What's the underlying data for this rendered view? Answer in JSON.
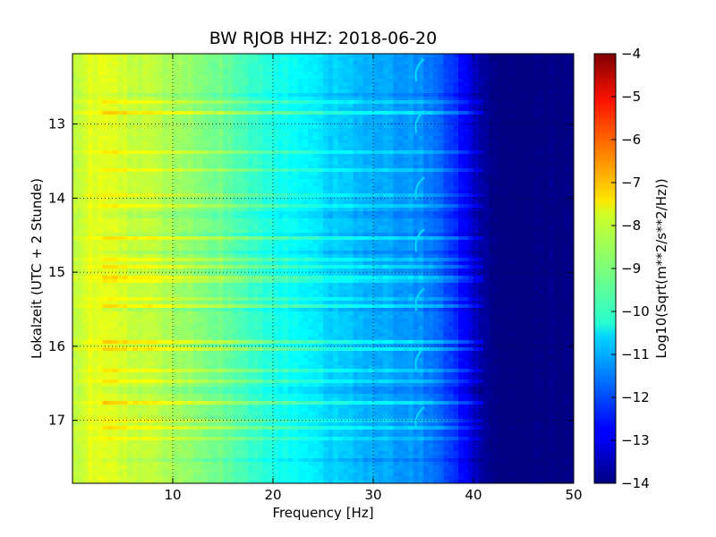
{
  "chart_data": {
    "type": "heatmap",
    "title": "BW RJOB HHZ: 2018-06-20",
    "xlabel": "Frequency [Hz]",
    "ylabel": "Lokalzeit (UTC + 2 Stunde)",
    "xlim": [
      0,
      50
    ],
    "ylim": [
      17.85,
      12.05
    ],
    "y_inverted": true,
    "grid": true,
    "x_ticks": [
      10,
      20,
      30,
      40,
      50
    ],
    "x_tick_labels": [
      "10",
      "20",
      "30",
      "40",
      "50"
    ],
    "y_ticks": [
      13,
      14,
      15,
      16,
      17
    ],
    "y_tick_labels": [
      "13",
      "14",
      "15",
      "16",
      "17"
    ],
    "colormap": "jet",
    "colorbar": {
      "label": "Log10(Sqrt(m**2/s**2/Hz))",
      "range": [
        -14,
        -4
      ],
      "ticks": [
        -4,
        -5,
        -6,
        -7,
        -8,
        -9,
        -10,
        -11,
        -12,
        -13,
        -14
      ],
      "tick_labels": [
        "−4",
        "−5",
        "−6",
        "−7",
        "−8",
        "−9",
        "−10",
        "−11",
        "−12",
        "−13",
        "−14"
      ],
      "placement": "right"
    },
    "spectral_profile": {
      "frequency_hz": [
        0,
        2,
        5,
        10,
        15,
        20,
        25,
        30,
        35,
        38,
        40,
        41,
        42,
        50
      ],
      "log10_amplitude": [
        -8.4,
        -8.0,
        -8.2,
        -8.6,
        -9.2,
        -10.0,
        -10.6,
        -11.0,
        -11.4,
        -12.2,
        -13.2,
        -13.7,
        -14.0,
        -14.0
      ]
    },
    "features": {
      "noise_floor_above_hz": 41,
      "drifting_line_hz": 34.5,
      "drifting_line_episodes_hours": [
        12.2,
        12.9,
        13.8,
        14.5,
        15.3,
        16.1,
        16.9
      ]
    }
  }
}
